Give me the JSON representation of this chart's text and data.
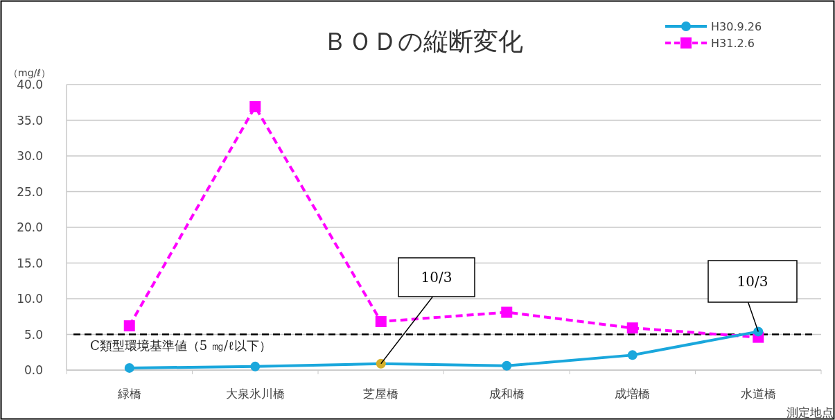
{
  "chart_data": {
    "type": "line",
    "title": "ＢＯＤの縦断変化",
    "ylabel": "（mg/ℓ）",
    "xlabel": "測定地点",
    "categories": [
      "緑橋",
      "大泉氷川橋",
      "芝屋橋",
      "成和橋",
      "成増橋",
      "水道橋"
    ],
    "series": [
      {
        "name": "H30.9.26",
        "color": "#1aa7dc",
        "colors": [
          "#1aa7dc",
          "#1aa7dc",
          "#d4b02a",
          "#1aa7dc",
          "#1aa7dc",
          "#1aa7dc"
        ],
        "marker": "circle",
        "line_style": "solid",
        "values": [
          0.3,
          0.5,
          0.9,
          0.6,
          2.1,
          5.4
        ]
      },
      {
        "name": "H31.2.6",
        "color": "#ff00ff",
        "marker": "square",
        "line_style": "dashed",
        "values": [
          6.2,
          36.9,
          6.8,
          8.1,
          5.9,
          4.6
        ]
      }
    ],
    "ylim": [
      0,
      40
    ],
    "yticks": [
      {
        "value": 0,
        "label": "0.0"
      },
      {
        "value": 5,
        "label": "5.0"
      },
      {
        "value": 10,
        "label": "10.0"
      },
      {
        "value": 15,
        "label": "15.0"
      },
      {
        "value": 20,
        "label": "20.0"
      },
      {
        "value": 25,
        "label": "25.0"
      },
      {
        "value": 30,
        "label": "30.0"
      },
      {
        "value": 35,
        "label": "35.0"
      },
      {
        "value": 40,
        "label": "40.0"
      }
    ],
    "ref_lines": [
      {
        "axis": "y",
        "value": 5,
        "label": "C類型環境基準値（5 ㎎/ℓ以下）",
        "color": "#000000",
        "line_style": "dashed"
      }
    ],
    "annotations": [
      {
        "text": "10/3",
        "x": "芝屋橋",
        "y": 0.9
      },
      {
        "text": "10/3",
        "x": "水道橋",
        "y": 5.4
      }
    ],
    "grid": "y",
    "legend": "top right"
  }
}
